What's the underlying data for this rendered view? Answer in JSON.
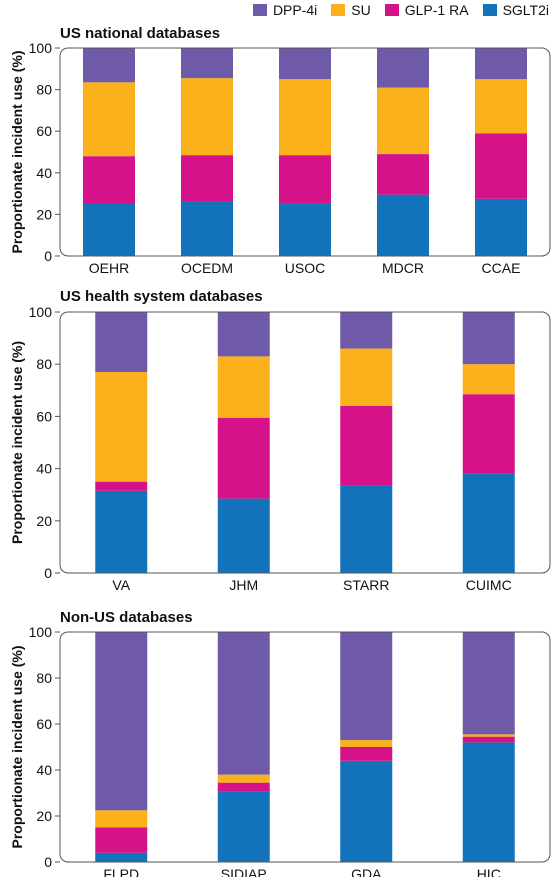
{
  "legend": {
    "items": [
      {
        "label": "DPP-4i",
        "color": "#6e5aa8"
      },
      {
        "label": "SU",
        "color": "#fbb11c"
      },
      {
        "label": "GLP-1 RA",
        "color": "#d6128a"
      },
      {
        "label": "SGLT2i",
        "color": "#1273bb"
      }
    ]
  },
  "chart_data": [
    {
      "type": "bar",
      "stacked": true,
      "title": "US national databases",
      "ylabel": "Proportionate incident use (%)",
      "ylim": [
        0,
        100
      ],
      "yticks": [
        0,
        20,
        40,
        60,
        80,
        100
      ],
      "grid": false,
      "legend_position": "top-right",
      "categories": [
        "OEHR",
        "OCEDM",
        "USOC",
        "MDCR",
        "CCAE"
      ],
      "series": [
        {
          "name": "SGLT2i",
          "values": [
            25,
            26,
            25.5,
            29.5,
            27.5
          ]
        },
        {
          "name": "GLP-1 RA",
          "values": [
            23,
            22.5,
            23,
            19.5,
            31.5
          ]
        },
        {
          "name": "SU",
          "values": [
            35.5,
            37,
            36.5,
            32,
            26
          ]
        },
        {
          "name": "DPP-4i",
          "values": [
            16.5,
            14.5,
            15,
            19,
            15
          ]
        }
      ]
    },
    {
      "type": "bar",
      "stacked": true,
      "title": "US health system databases",
      "ylabel": "Proportionate incident use (%)",
      "ylim": [
        0,
        100
      ],
      "yticks": [
        0,
        20,
        40,
        60,
        80,
        100
      ],
      "grid": false,
      "categories": [
        "VA",
        "JHM",
        "STARR",
        "CUIMC"
      ],
      "series": [
        {
          "name": "SGLT2i",
          "values": [
            31.5,
            28.5,
            33.5,
            38
          ]
        },
        {
          "name": "GLP-1 RA",
          "values": [
            3.5,
            31,
            30.5,
            30.5
          ]
        },
        {
          "name": "SU",
          "values": [
            42,
            23.5,
            22,
            11.5
          ]
        },
        {
          "name": "DPP-4i",
          "values": [
            23,
            17,
            14,
            20
          ]
        }
      ]
    },
    {
      "type": "bar",
      "stacked": true,
      "title": "Non-US databases",
      "ylabel": "Proportionate incident use (%)",
      "ylim": [
        0,
        100
      ],
      "yticks": [
        0,
        20,
        40,
        60,
        80,
        100
      ],
      "grid": false,
      "categories": [
        "FLPD",
        "SIDIAP",
        "GDA",
        "HIC"
      ],
      "series": [
        {
          "name": "SGLT2i",
          "values": [
            4,
            30.5,
            44,
            52
          ]
        },
        {
          "name": "GLP-1 RA",
          "values": [
            11,
            4,
            6,
            2.5
          ]
        },
        {
          "name": "SU",
          "values": [
            7.5,
            3.5,
            3,
            1
          ]
        },
        {
          "name": "DPP-4i",
          "values": [
            77.5,
            62,
            47,
            44.5
          ]
        }
      ]
    }
  ]
}
